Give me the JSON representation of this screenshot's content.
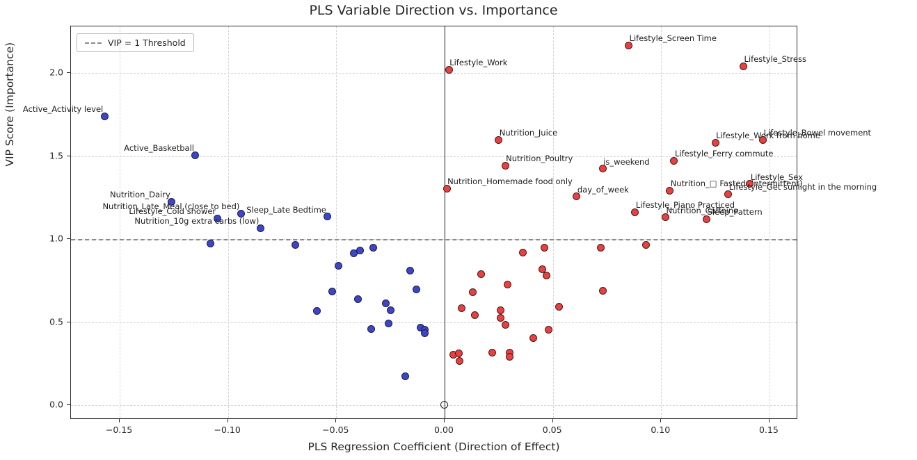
{
  "chart_data": {
    "type": "scatter",
    "title": "PLS Variable Direction vs. Importance",
    "xlabel": "PLS Regression Coefficient (Direction of Effect)",
    "ylabel": "VIP Score (Importance)",
    "xlim": [
      -0.1725,
      0.1632
    ],
    "ylim": [
      -0.088,
      2.281
    ],
    "xticks": [
      -0.15,
      -0.1,
      -0.05,
      0.0,
      0.05,
      0.1,
      0.15
    ],
    "xtick_labels": [
      "−0.15",
      "−0.10",
      "−0.05",
      "0.00",
      "0.05",
      "0.10",
      "0.15"
    ],
    "yticks": [
      0.0,
      0.5,
      1.0,
      1.5,
      2.0
    ],
    "ytick_labels": [
      "0.0",
      "0.5",
      "1.0",
      "1.5",
      "2.0"
    ],
    "grid": true,
    "legend_label": "VIP = 1 Threshold",
    "legend_position": "upper-left",
    "threshold": {
      "y": 1.0
    },
    "zero_line_x": 0.0,
    "origin_marker": {
      "x": 0.0,
      "y": 0.0,
      "style": "open-circle"
    },
    "colors": {
      "negative": "#3d45cc",
      "positive": "#ec3f3f",
      "edge": "#141414",
      "threshold": "#8a8a8a"
    },
    "series": [
      {
        "name": "negative-coefficient",
        "color": "#3d45cc",
        "points": [
          {
            "x": -0.157,
            "y": 1.74,
            "label": "Active_Activity level"
          },
          {
            "x": -0.115,
            "y": 1.505,
            "label": "Active_Basketball"
          },
          {
            "x": -0.126,
            "y": 1.226,
            "label": "Nutrition_Dairy"
          },
          {
            "x": -0.094,
            "y": 1.155,
            "label": "Nutrition_Late_Meal (close to bed)"
          },
          {
            "x": -0.105,
            "y": 1.125,
            "label": "Lifestyle_Cold shower"
          },
          {
            "x": -0.054,
            "y": 1.135,
            "label": "Sleep_Late Bedtime"
          },
          {
            "x": -0.085,
            "y": 1.066,
            "label": "Nutrition_10g extra carbs (low)"
          },
          {
            "x": -0.108,
            "y": 0.971
          },
          {
            "x": -0.069,
            "y": 0.964
          },
          {
            "x": -0.042,
            "y": 0.915
          },
          {
            "x": -0.039,
            "y": 0.933
          },
          {
            "x": -0.033,
            "y": 0.947
          },
          {
            "x": -0.049,
            "y": 0.841
          },
          {
            "x": -0.016,
            "y": 0.809
          },
          {
            "x": -0.052,
            "y": 0.685
          },
          {
            "x": -0.04,
            "y": 0.637
          },
          {
            "x": -0.013,
            "y": 0.697
          },
          {
            "x": -0.027,
            "y": 0.611
          },
          {
            "x": -0.025,
            "y": 0.57
          },
          {
            "x": -0.059,
            "y": 0.569
          },
          {
            "x": -0.026,
            "y": 0.491
          },
          {
            "x": -0.034,
            "y": 0.459
          },
          {
            "x": -0.011,
            "y": 0.466
          },
          {
            "x": -0.009,
            "y": 0.455
          },
          {
            "x": -0.009,
            "y": 0.435
          },
          {
            "x": -0.018,
            "y": 0.173
          }
        ]
      },
      {
        "name": "positive-coefficient",
        "color": "#ec3f3f",
        "points": [
          {
            "x": 0.002,
            "y": 2.02,
            "label": "Lifestyle_Work"
          },
          {
            "x": 0.085,
            "y": 2.166,
            "label": "Lifestyle_Screen Time"
          },
          {
            "x": 0.138,
            "y": 2.042,
            "label": "Lifestyle_Stress"
          },
          {
            "x": 0.025,
            "y": 1.598,
            "label": "Nutrition_Juice"
          },
          {
            "x": 0.028,
            "y": 1.443,
            "label": "Nutrition_Poultry"
          },
          {
            "x": 0.073,
            "y": 1.424,
            "label": "is_weekend"
          },
          {
            "x": 0.106,
            "y": 1.473,
            "label": "Lifestyle_Ferry commute"
          },
          {
            "x": 0.125,
            "y": 1.58,
            "label": "Lifestyle_Work from home"
          },
          {
            "x": 0.147,
            "y": 1.597,
            "label": "Lifestyle_Bowel movement"
          },
          {
            "x": 0.001,
            "y": 1.305,
            "label": "Nutrition_Homemade food only"
          },
          {
            "x": 0.061,
            "y": 1.257,
            "label": "day_of_week"
          },
          {
            "x": 0.104,
            "y": 1.292,
            "label": "Nutrition_□ Fasted (Intermittent)"
          },
          {
            "x": 0.141,
            "y": 1.331,
            "label": "Lifestyle_Sex"
          },
          {
            "x": 0.131,
            "y": 1.271,
            "label": "Lifestyle_Get sunlight in the morning"
          },
          {
            "x": 0.088,
            "y": 1.163,
            "label": "Lifestyle_Piano Practiced"
          },
          {
            "x": 0.102,
            "y": 1.131,
            "label": "Nutrition_Caffeine"
          },
          {
            "x": 0.121,
            "y": 1.12,
            "label": "Sleep_Pattern"
          },
          {
            "x": 0.036,
            "y": 0.919
          },
          {
            "x": 0.046,
            "y": 0.949
          },
          {
            "x": 0.072,
            "y": 0.946
          },
          {
            "x": 0.093,
            "y": 0.964
          },
          {
            "x": 0.017,
            "y": 0.787
          },
          {
            "x": 0.045,
            "y": 0.817
          },
          {
            "x": 0.047,
            "y": 0.782
          },
          {
            "x": 0.029,
            "y": 0.728
          },
          {
            "x": 0.013,
            "y": 0.678
          },
          {
            "x": 0.073,
            "y": 0.69
          },
          {
            "x": 0.008,
            "y": 0.582
          },
          {
            "x": 0.053,
            "y": 0.594
          },
          {
            "x": 0.014,
            "y": 0.543
          },
          {
            "x": 0.026,
            "y": 0.57
          },
          {
            "x": 0.026,
            "y": 0.527
          },
          {
            "x": 0.028,
            "y": 0.483
          },
          {
            "x": 0.048,
            "y": 0.453
          },
          {
            "x": 0.041,
            "y": 0.402
          },
          {
            "x": 0.004,
            "y": 0.304
          },
          {
            "x": 0.0065,
            "y": 0.311
          },
          {
            "x": 0.007,
            "y": 0.265
          },
          {
            "x": 0.022,
            "y": 0.314
          },
          {
            "x": 0.03,
            "y": 0.317
          },
          {
            "x": 0.03,
            "y": 0.29
          }
        ]
      }
    ]
  }
}
